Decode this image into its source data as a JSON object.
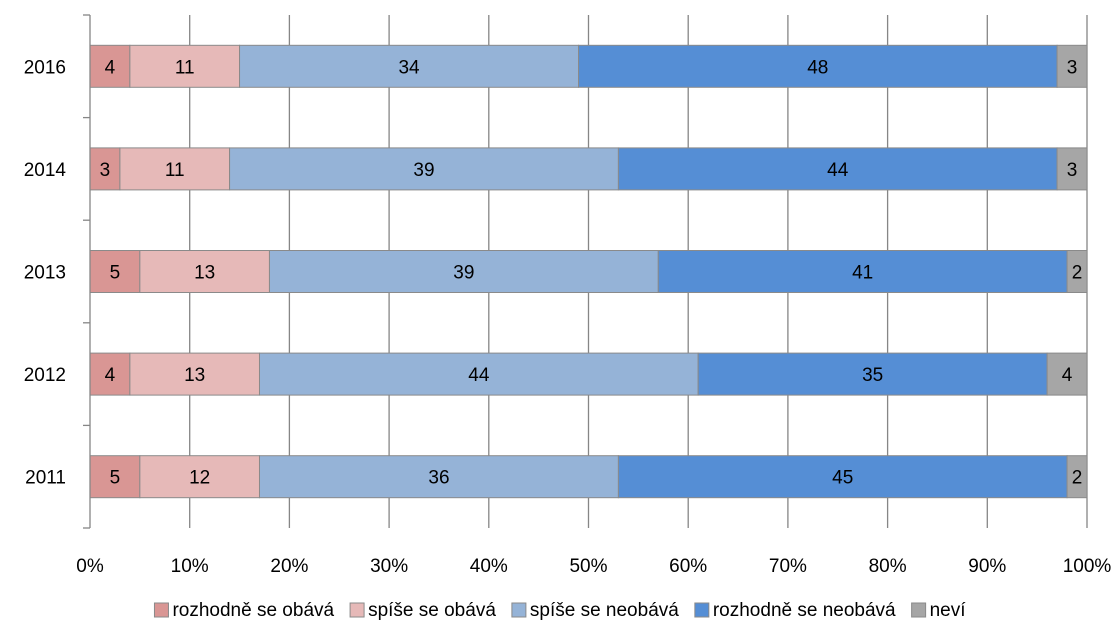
{
  "chart_data": {
    "type": "bar",
    "orientation": "horizontal",
    "stacked": "percent",
    "categories": [
      "2016",
      "2014",
      "2013",
      "2012",
      "2011"
    ],
    "series": [
      {
        "name": "rozhodně se obává",
        "values": [
          4,
          3,
          5,
          4,
          5
        ],
        "color": "#D99694"
      },
      {
        "name": "spíše se obává",
        "values": [
          11,
          11,
          13,
          13,
          12
        ],
        "color": "#E6B9B8"
      },
      {
        "name": "spíše se neobává",
        "values": [
          34,
          39,
          39,
          44,
          36
        ],
        "color": "#95B3D7"
      },
      {
        "name": "rozhodně se neobává",
        "values": [
          48,
          44,
          41,
          35,
          45
        ],
        "color": "#558ED5"
      },
      {
        "name": "neví",
        "values": [
          3,
          3,
          2,
          4,
          2
        ],
        "color": "#A6A6A6"
      }
    ],
    "xtick_labels": [
      "0%",
      "10%",
      "20%",
      "30%",
      "40%",
      "50%",
      "60%",
      "70%",
      "80%",
      "90%",
      "100%"
    ],
    "xlim": [
      0,
      100
    ],
    "grid": "vertical",
    "legend": "bottom",
    "title": "",
    "xlabel": "",
    "ylabel": ""
  }
}
